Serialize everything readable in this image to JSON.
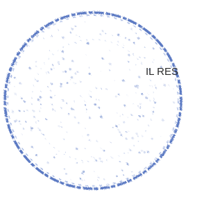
{
  "stamp": {
    "text": "IL RES"
  }
}
